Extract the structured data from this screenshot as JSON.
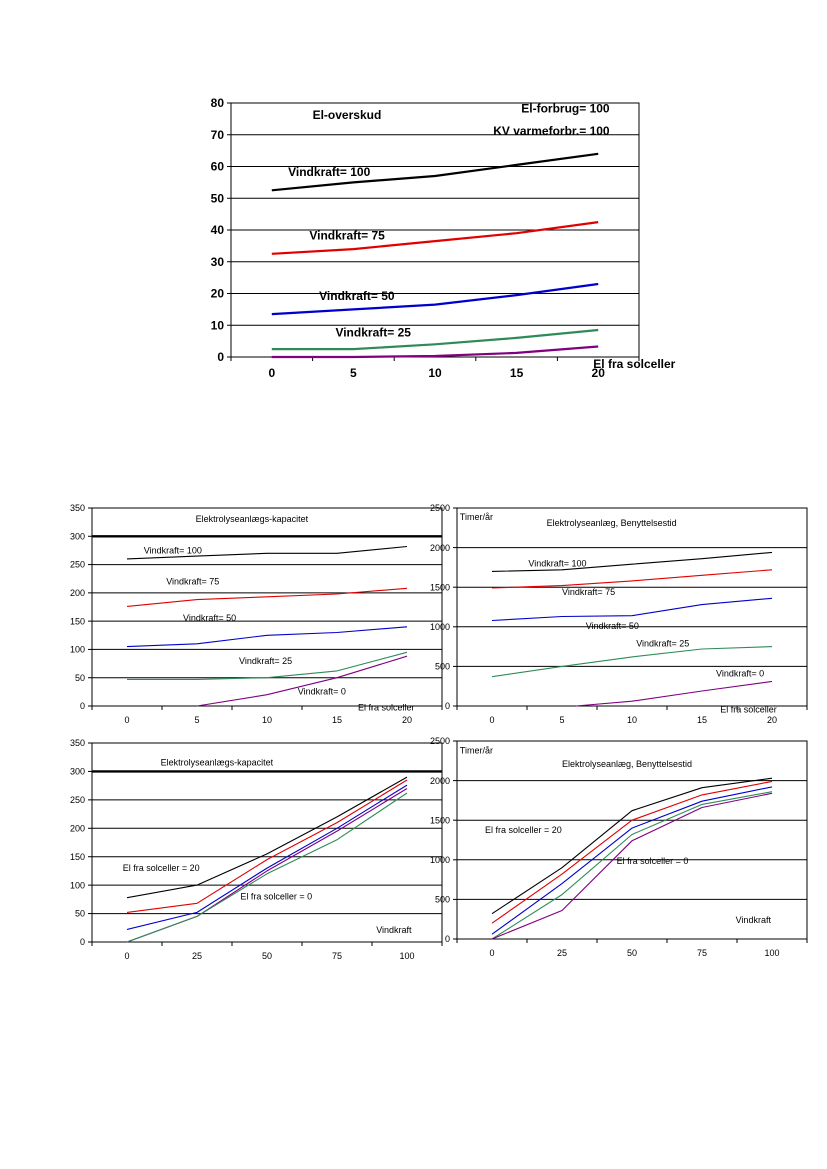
{
  "chart_data": [
    {
      "type": "line",
      "xlim": [
        -2.5,
        22.5
      ],
      "ylim": [
        0,
        80
      ],
      "xticks": [
        0,
        5,
        10,
        15,
        20
      ],
      "yticks": [
        0,
        10,
        20,
        30,
        40,
        50,
        60,
        70,
        80
      ],
      "grid": true,
      "bold": true,
      "annotations": [
        {
          "text": "El-overskud",
          "x": 2.5,
          "y": 75
        },
        {
          "text": "El-forbrug= 100",
          "x": 20.7,
          "y": 77,
          "anchor": "end"
        },
        {
          "text": "KV varmeforbr.= 100",
          "x": 20.7,
          "y": 70,
          "anchor": "end"
        },
        {
          "text": "Vindkraft= 100",
          "x": 1.0,
          "y": 57
        },
        {
          "text": "Vindkraft= 75",
          "x": 2.3,
          "y": 37
        },
        {
          "text": "Vindkraft= 50",
          "x": 2.9,
          "y": 18
        },
        {
          "text": "Vindkraft= 25",
          "x": 3.9,
          "y": 6.5
        },
        {
          "text": "El fra solceller",
          "x": 19.7,
          "y": -3.5
        }
      ],
      "series": [
        {
          "color": "#000000",
          "x": [
            0,
            5,
            10,
            15,
            20
          ],
          "y": [
            52.5,
            55,
            57,
            60.5,
            64
          ]
        },
        {
          "color": "#e00000",
          "x": [
            0,
            5,
            10,
            15,
            20
          ],
          "y": [
            32.5,
            34,
            36.5,
            39,
            42.5
          ]
        },
        {
          "color": "#0000cc",
          "x": [
            0,
            5,
            10,
            15,
            20
          ],
          "y": [
            13.5,
            15,
            16.5,
            19.5,
            23
          ]
        },
        {
          "color": "#2e8b57",
          "x": [
            0,
            5,
            10,
            15,
            20
          ],
          "y": [
            2.5,
            2.5,
            4,
            6,
            8.5
          ]
        },
        {
          "color": "#800080",
          "x": [
            0,
            5,
            10,
            15,
            20
          ],
          "y": [
            0,
            0,
            0.3,
            1.3,
            3.3
          ]
        }
      ]
    },
    {
      "type": "line",
      "xlim": [
        -2.5,
        22.5
      ],
      "ylim": [
        0,
        350
      ],
      "xticks": [
        0,
        5,
        10,
        15,
        20
      ],
      "yticks": [
        0,
        50,
        100,
        150,
        200,
        250,
        300,
        350
      ],
      "grid": true,
      "bold": false,
      "thickLine": 300,
      "annotations": [
        {
          "text": "Elektrolyseanlægs-kapacitet",
          "x": 4.9,
          "y": 325
        },
        {
          "text": "Vindkraft= 100",
          "x": 1.2,
          "y": 270
        },
        {
          "text": "Vindkraft= 75",
          "x": 2.8,
          "y": 215
        },
        {
          "text": "Vindkraft= 50",
          "x": 4.0,
          "y": 150
        },
        {
          "text": "Vindkraft= 25",
          "x": 8.0,
          "y": 74
        },
        {
          "text": "Vindkraft= 0",
          "x": 12.2,
          "y": 20
        },
        {
          "text": "El fra solceller",
          "x": 16.5,
          "y": -8
        }
      ],
      "series": [
        {
          "color": "#000000",
          "x": [
            0,
            5,
            10,
            15,
            20
          ],
          "y": [
            260,
            265,
            270,
            270,
            282
          ]
        },
        {
          "color": "#e00000",
          "x": [
            0,
            5,
            10,
            15,
            20
          ],
          "y": [
            176,
            188,
            193,
            198,
            208
          ]
        },
        {
          "color": "#0000cc",
          "x": [
            0,
            5,
            10,
            15,
            20
          ],
          "y": [
            105,
            110,
            125,
            130,
            140
          ]
        },
        {
          "color": "#2e8b57",
          "x": [
            0,
            5,
            10,
            15,
            20
          ],
          "y": [
            47,
            47,
            50,
            62,
            95
          ]
        },
        {
          "color": "#800080",
          "x": [
            5,
            10,
            15,
            20
          ],
          "y": [
            0,
            20,
            50,
            88
          ]
        }
      ]
    },
    {
      "type": "line",
      "xlim": [
        -2.5,
        22.5
      ],
      "ylim": [
        0,
        2500
      ],
      "xticks": [
        0,
        5,
        10,
        15,
        20
      ],
      "yticks": [
        0,
        500,
        1000,
        1500,
        2000,
        2500
      ],
      "grid": true,
      "bold": false,
      "annotations": [
        {
          "text": "Timer/år",
          "x": -2.3,
          "y": 2350
        },
        {
          "text": "Elektrolyseanlæg, Benyttelsestid",
          "x": 3.9,
          "y": 2270
        },
        {
          "text": "Vindkraft= 100",
          "x": 2.6,
          "y": 1760
        },
        {
          "text": "Vindkraft= 75",
          "x": 5.0,
          "y": 1400
        },
        {
          "text": "Vindkraft= 50",
          "x": 6.7,
          "y": 970
        },
        {
          "text": "Vindkraft= 25",
          "x": 10.3,
          "y": 750
        },
        {
          "text": "Vindkraft= 0",
          "x": 16.0,
          "y": 370
        },
        {
          "text": "El fra solceller",
          "x": 16.3,
          "y": -80
        }
      ],
      "series": [
        {
          "color": "#000000",
          "x": [
            0,
            5,
            10,
            15,
            20
          ],
          "y": [
            1700,
            1720,
            1790,
            1860,
            1940
          ]
        },
        {
          "color": "#e00000",
          "x": [
            0,
            5,
            10,
            15,
            20
          ],
          "y": [
            1490,
            1520,
            1580,
            1650,
            1720
          ]
        },
        {
          "color": "#0000cc",
          "x": [
            0,
            5,
            10,
            15,
            20
          ],
          "y": [
            1080,
            1130,
            1140,
            1280,
            1360
          ]
        },
        {
          "color": "#2e8b57",
          "x": [
            0,
            5,
            10,
            15,
            20
          ],
          "y": [
            370,
            500,
            620,
            720,
            750
          ]
        },
        {
          "color": "#800080",
          "x": [
            6,
            10,
            15,
            20
          ],
          "y": [
            0,
            60,
            190,
            310
          ]
        }
      ]
    },
    {
      "type": "line",
      "xlim": [
        -12.5,
        112.5
      ],
      "ylim": [
        0,
        350
      ],
      "xticks": [
        0,
        25,
        50,
        75,
        100
      ],
      "yticks": [
        0,
        50,
        100,
        150,
        200,
        250,
        300,
        350
      ],
      "grid": true,
      "bold": false,
      "thickLine": 300,
      "annotations": [
        {
          "text": "Elektrolyseanlægs-kapacitet",
          "x": 12.0,
          "y": 310
        },
        {
          "text": "El fra solceller = 20",
          "x": -1.5,
          "y": 125
        },
        {
          "text": "El fra solceller = 0",
          "x": 40.5,
          "y": 75
        },
        {
          "text": "Vindkraft",
          "x": 89.0,
          "y": 16
        }
      ],
      "series": [
        {
          "color": "#000000",
          "x": [
            0,
            25,
            50,
            75,
            100
          ],
          "y": [
            78,
            100,
            155,
            220,
            290
          ]
        },
        {
          "color": "#e00000",
          "x": [
            0,
            25,
            50,
            75,
            100
          ],
          "y": [
            52,
            68,
            145,
            210,
            285
          ]
        },
        {
          "color": "#0000cc",
          "x": [
            0,
            25,
            50,
            75,
            100
          ],
          "y": [
            22,
            52,
            130,
            200,
            276
          ]
        },
        {
          "color": "#800080",
          "x": [
            0,
            25,
            50,
            75,
            100
          ],
          "y": [
            0,
            45,
            125,
            195,
            270
          ]
        },
        {
          "color": "#2e8b57",
          "x": [
            0,
            25,
            50,
            75,
            100
          ],
          "y": [
            0,
            45,
            120,
            180,
            262
          ]
        }
      ]
    },
    {
      "type": "line",
      "xlim": [
        -12.5,
        112.5
      ],
      "ylim": [
        0,
        2500
      ],
      "xticks": [
        0,
        25,
        50,
        75,
        100
      ],
      "yticks": [
        0,
        500,
        1000,
        1500,
        2000,
        2500
      ],
      "grid": true,
      "bold": false,
      "annotations": [
        {
          "text": "Timer/år",
          "x": -11.5,
          "y": 2340
        },
        {
          "text": "Elektrolyseanlæg, Benyttelsestid",
          "x": 25.0,
          "y": 2170
        },
        {
          "text": "El fra solceller = 20",
          "x": -2.5,
          "y": 1340
        },
        {
          "text": "El fra solceller = 0",
          "x": 44.5,
          "y": 950
        },
        {
          "text": "Vindkraft",
          "x": 87.0,
          "y": 200
        }
      ],
      "series": [
        {
          "color": "#000000",
          "x": [
            0,
            25,
            50,
            75,
            100
          ],
          "y": [
            320,
            900,
            1620,
            1910,
            2030
          ]
        },
        {
          "color": "#e00000",
          "x": [
            0,
            25,
            50,
            75,
            100
          ],
          "y": [
            200,
            820,
            1500,
            1820,
            1990
          ]
        },
        {
          "color": "#0000cc",
          "x": [
            0,
            25,
            50,
            75,
            100
          ],
          "y": [
            60,
            700,
            1400,
            1740,
            1920
          ]
        },
        {
          "color": "#2e8b57",
          "x": [
            0,
            25,
            50,
            75,
            100
          ],
          "y": [
            0,
            560,
            1320,
            1700,
            1860
          ]
        },
        {
          "color": "#800080",
          "x": [
            0,
            25,
            50,
            75,
            100
          ],
          "y": [
            0,
            360,
            1240,
            1660,
            1840
          ]
        }
      ]
    }
  ]
}
